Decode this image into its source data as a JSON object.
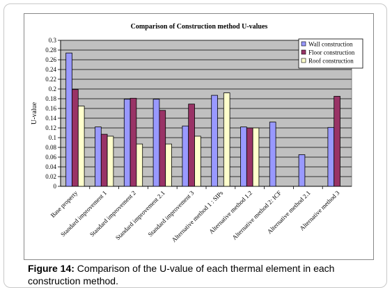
{
  "chart_data": {
    "type": "bar",
    "title": "Comparison of Construction method U-values",
    "ylabel": "U-value",
    "xlabel": "",
    "ylim": [
      0,
      0.3
    ],
    "ytick_step": 0.02,
    "ytick_labels": [
      "0",
      "0.02",
      "0.04",
      "0.06",
      "0.08",
      "0.1",
      "0.12",
      "0.14",
      "0.16",
      "0.18",
      "0.2",
      "0.22",
      "0.24",
      "0.26",
      "0.28",
      "0.3"
    ],
    "grid": true,
    "legend_position": "top-right",
    "categories": [
      "Base property",
      "Standard improvement 1",
      "Standard improvement 2",
      "Standard improvement 2.1",
      "Standard improvement 3",
      "Alternative method 1 : SIPs",
      "Alternative method 1.2",
      "Alternative method 2: ICF",
      "Alternative method 2.1",
      "Alternative method 3"
    ],
    "series": [
      {
        "name": "Wall construction",
        "color": "#9999ff",
        "values": [
          0.274,
          0.122,
          0.179,
          0.179,
          0.124,
          0.187,
          0.122,
          0.132,
          0.065,
          0.121
        ]
      },
      {
        "name": "Floor construction",
        "color": "#993366",
        "values": [
          0.199,
          0.107,
          0.181,
          0.156,
          0.169,
          null,
          0.12,
          null,
          null,
          0.185
        ]
      },
      {
        "name": "Roof construction",
        "color": "#ffffcc",
        "values": [
          0.165,
          0.103,
          0.087,
          0.087,
          0.103,
          0.192,
          0.12,
          null,
          null,
          null
        ]
      }
    ]
  },
  "caption": {
    "label": "Figure 14:",
    "text": " Comparison of the U-value of each thermal element in each construction method."
  }
}
